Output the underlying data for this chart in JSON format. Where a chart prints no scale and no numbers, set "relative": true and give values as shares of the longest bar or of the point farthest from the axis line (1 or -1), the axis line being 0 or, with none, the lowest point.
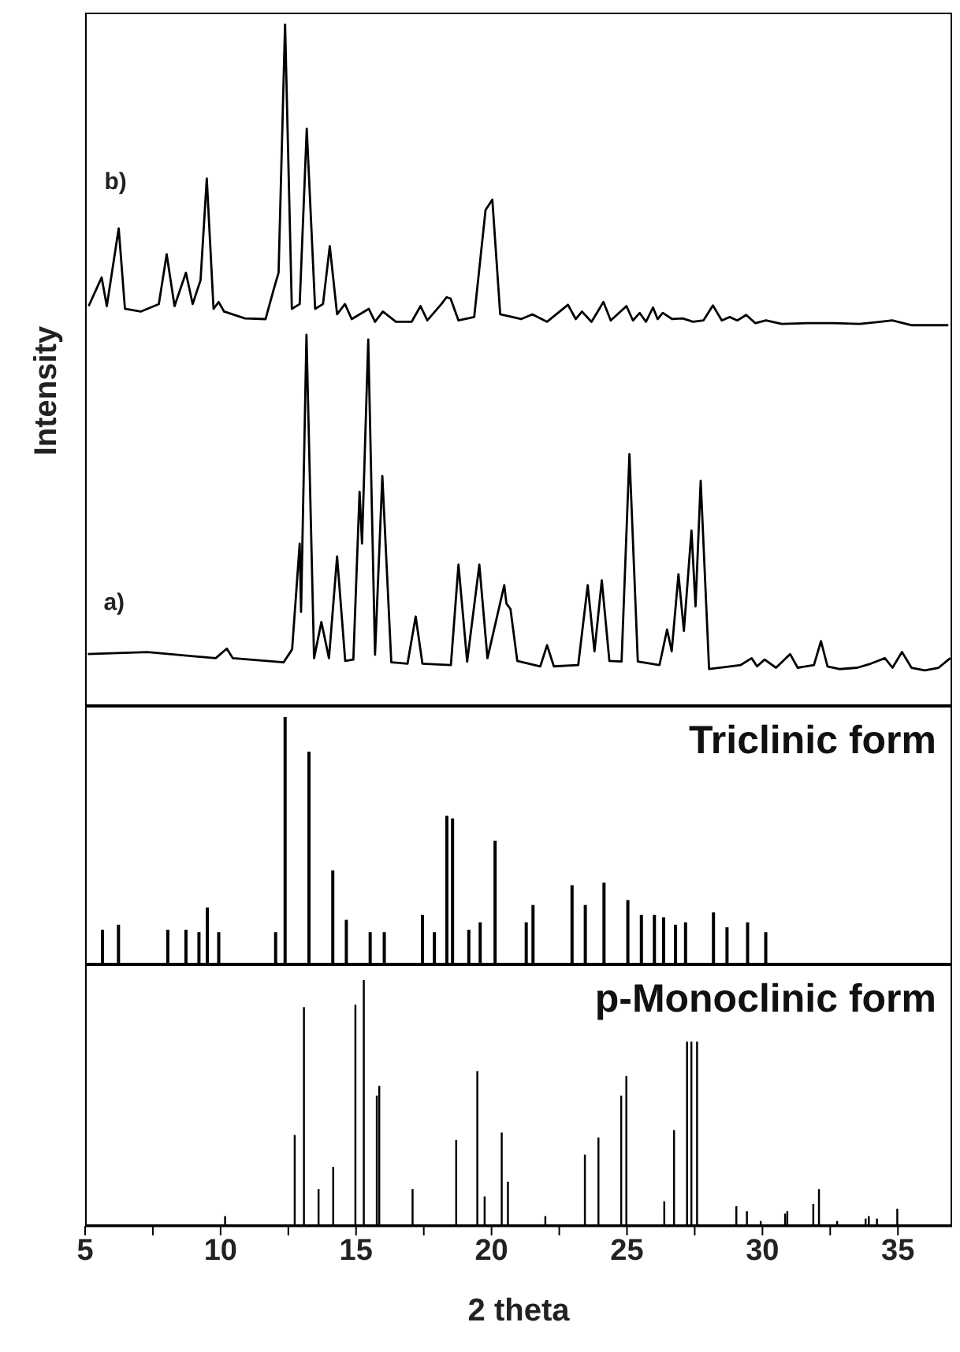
{
  "chart_data": [
    {
      "type": "line",
      "relative": true,
      "ylabel": "Intensity",
      "xlim": [
        5,
        37
      ],
      "tick_labels": false,
      "marker": "none",
      "line_style": "solid",
      "series": [
        {
          "name": "b)",
          "color": "#000000",
          "x": [
            5.13,
            5.61,
            5.8,
            6.24,
            6.47,
            7.05,
            7.72,
            8.01,
            8.3,
            8.72,
            8.97,
            9.26,
            9.49,
            9.74,
            9.93,
            10.13,
            10.9,
            11.66,
            11.95,
            12.14,
            12.38,
            12.63,
            12.92,
            13.18,
            13.49,
            13.78,
            14.03,
            14.3,
            14.59,
            14.84,
            15.47,
            15.7,
            15.99,
            16.47,
            17.05,
            17.38,
            17.63,
            18.15,
            18.34,
            18.49,
            18.78,
            19.36,
            19.78,
            20.03,
            20.32,
            21.09,
            21.51,
            22.05,
            22.82,
            23.11,
            23.34,
            23.69,
            24.13,
            24.4,
            24.98,
            25.22,
            25.47,
            25.7,
            25.96,
            26.13,
            26.32,
            26.67,
            27.05,
            27.44,
            27.82,
            28.17,
            28.5,
            28.79,
            29.07,
            29.4,
            29.74,
            30.13,
            30.71,
            31.67,
            32.63,
            33.59,
            34.36,
            34.79,
            35.51,
            36.86
          ],
          "values": [
            0.586,
            0.628,
            0.586,
            0.7,
            0.582,
            0.578,
            0.589,
            0.662,
            0.586,
            0.635,
            0.589,
            0.624,
            0.773,
            0.582,
            0.592,
            0.578,
            0.568,
            0.567,
            0.609,
            0.635,
            1.0,
            0.582,
            0.589,
            0.846,
            0.582,
            0.589,
            0.674,
            0.574,
            0.589,
            0.567,
            0.582,
            0.563,
            0.578,
            0.563,
            0.563,
            0.586,
            0.565,
            0.589,
            0.599,
            0.597,
            0.565,
            0.57,
            0.727,
            0.742,
            0.574,
            0.567,
            0.574,
            0.563,
            0.588,
            0.567,
            0.578,
            0.563,
            0.592,
            0.565,
            0.586,
            0.565,
            0.576,
            0.563,
            0.584,
            0.567,
            0.576,
            0.567,
            0.568,
            0.563,
            0.565,
            0.587,
            0.565,
            0.57,
            0.565,
            0.573,
            0.561,
            0.565,
            0.56,
            0.561,
            0.561,
            0.56,
            0.563,
            0.565,
            0.558,
            0.558
          ]
        },
        {
          "name": "a)",
          "color": "#000000",
          "x": [
            5.1,
            7.3,
            9.82,
            10.23,
            10.45,
            12.33,
            12.64,
            12.92,
            12.97,
            13.17,
            13.45,
            13.72,
            14.0,
            14.3,
            14.6,
            14.9,
            15.13,
            15.22,
            15.45,
            15.7,
            15.97,
            16.3,
            16.9,
            17.2,
            17.45,
            18.5,
            18.78,
            19.1,
            19.55,
            19.85,
            20.47,
            20.55,
            20.7,
            20.95,
            21.8,
            22.05,
            22.3,
            23.2,
            23.55,
            23.8,
            24.07,
            24.35,
            24.8,
            25.09,
            25.4,
            26.2,
            26.48,
            26.65,
            26.9,
            27.1,
            27.38,
            27.53,
            27.72,
            28.03,
            28.8,
            29.2,
            29.6,
            29.8,
            30.08,
            30.5,
            31.02,
            31.3,
            31.9,
            32.16,
            32.4,
            32.84,
            33.5,
            34.0,
            34.52,
            34.8,
            35.15,
            35.5,
            35.99,
            36.5,
            36.93
          ],
          "values": [
            0.076,
            0.079,
            0.07,
            0.084,
            0.07,
            0.064,
            0.083,
            0.238,
            0.138,
            0.544,
            0.07,
            0.123,
            0.07,
            0.219,
            0.066,
            0.068,
            0.314,
            0.238,
            0.537,
            0.075,
            0.337,
            0.064,
            0.062,
            0.131,
            0.062,
            0.06,
            0.207,
            0.065,
            0.207,
            0.07,
            0.177,
            0.15,
            0.142,
            0.066,
            0.058,
            0.089,
            0.058,
            0.06,
            0.177,
            0.08,
            0.184,
            0.066,
            0.065,
            0.369,
            0.065,
            0.06,
            0.112,
            0.08,
            0.193,
            0.11,
            0.257,
            0.146,
            0.33,
            0.054,
            0.058,
            0.06,
            0.07,
            0.058,
            0.068,
            0.056,
            0.076,
            0.056,
            0.06,
            0.095,
            0.058,
            0.054,
            0.056,
            0.062,
            0.07,
            0.056,
            0.079,
            0.056,
            0.052,
            0.056,
            0.07
          ]
        }
      ]
    },
    {
      "type": "bar",
      "relative": true,
      "title": "Triclinic form",
      "xlim": [
        5,
        37
      ],
      "tick_labels": false,
      "color": "#000000",
      "x": [
        5.63,
        6.22,
        8.04,
        8.71,
        9.19,
        9.5,
        9.92,
        12.02,
        12.37,
        13.25,
        14.13,
        14.63,
        15.51,
        16.03,
        17.44,
        17.88,
        18.34,
        18.55,
        19.15,
        19.57,
        20.12,
        21.27,
        21.52,
        22.96,
        23.45,
        24.14,
        25.02,
        25.52,
        26.0,
        26.34,
        26.78,
        27.15,
        28.18,
        28.68,
        29.44,
        30.11
      ],
      "values": [
        0.14,
        0.16,
        0.14,
        0.14,
        0.13,
        0.23,
        0.13,
        0.13,
        1.0,
        0.86,
        0.38,
        0.18,
        0.13,
        0.13,
        0.2,
        0.13,
        0.6,
        0.59,
        0.14,
        0.17,
        0.5,
        0.17,
        0.24,
        0.32,
        0.24,
        0.33,
        0.26,
        0.2,
        0.2,
        0.19,
        0.16,
        0.17,
        0.21,
        0.15,
        0.17,
        0.13
      ]
    },
    {
      "type": "bar",
      "relative": true,
      "title": "p-Monoclinic form",
      "xlabel": "2 theta",
      "xlim": [
        5,
        37
      ],
      "color": "#000000",
      "xticks": [
        5,
        {
          "value": 7.5,
          "label": null
        },
        10,
        {
          "value": 12.5,
          "label": null
        },
        15,
        {
          "value": 17.5,
          "label": null
        },
        20,
        {
          "value": 22.5,
          "label": null
        },
        25,
        {
          "value": 27.5,
          "label": null
        },
        30,
        {
          "value": 32.5,
          "label": null
        },
        35
      ],
      "x": [
        10.17,
        12.74,
        13.08,
        13.62,
        14.16,
        14.98,
        15.29,
        15.77,
        15.86,
        17.09,
        18.7,
        19.48,
        19.75,
        20.38,
        20.61,
        21.99,
        23.45,
        23.95,
        24.79,
        24.98,
        26.38,
        26.74,
        27.22,
        27.38,
        27.59,
        29.04,
        29.43,
        29.94,
        30.84,
        30.92,
        31.88,
        32.09,
        32.76,
        33.81,
        33.93,
        34.23,
        34.98
      ],
      "values": [
        0.04,
        0.37,
        0.89,
        0.15,
        0.24,
        0.9,
        1.0,
        0.53,
        0.57,
        0.15,
        0.35,
        0.63,
        0.12,
        0.38,
        0.18,
        0.04,
        0.29,
        0.36,
        0.53,
        0.61,
        0.1,
        0.39,
        0.75,
        0.75,
        0.75,
        0.08,
        0.06,
        0.02,
        0.05,
        0.06,
        0.09,
        0.15,
        0.02,
        0.03,
        0.04,
        0.03,
        0.07
      ]
    }
  ]
}
